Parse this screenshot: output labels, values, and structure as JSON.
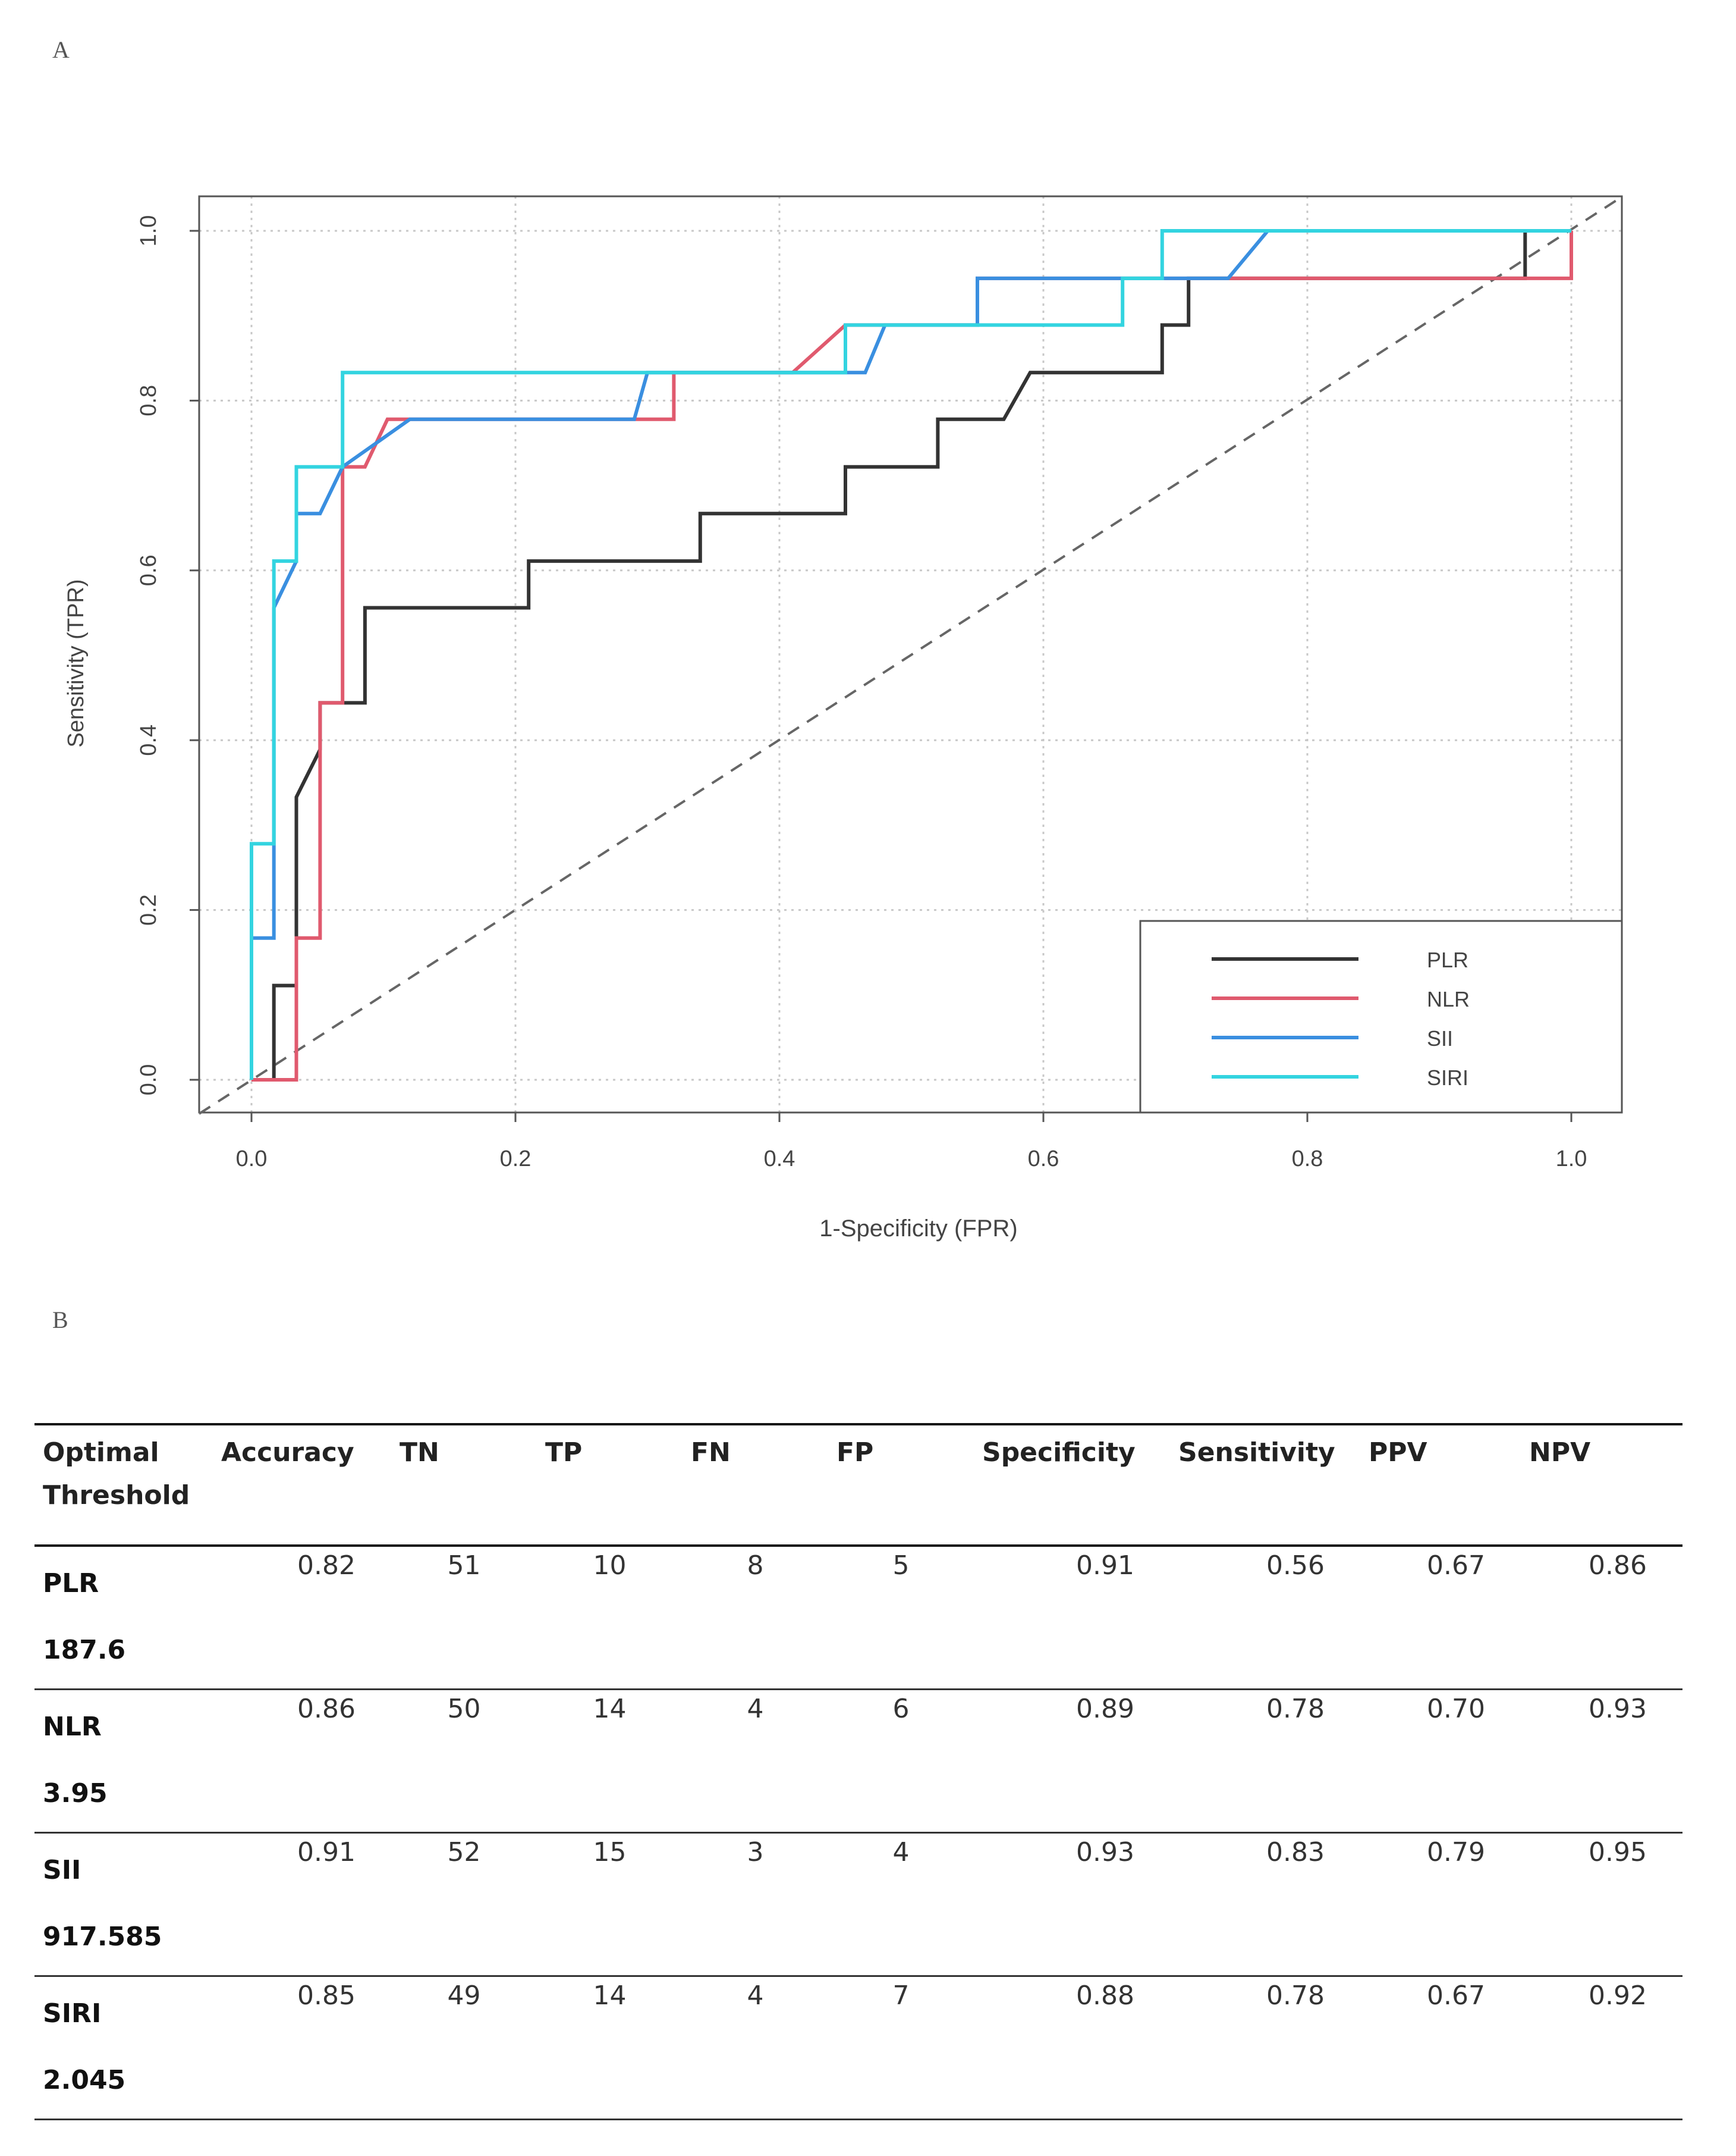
{
  "chart_data": {
    "type": "line",
    "panel_label": "A",
    "title": "",
    "xlabel": "1-Specificity (FPR)",
    "ylabel": "Sensitivity (TPR)",
    "xlim": [
      0,
      1
    ],
    "ylim": [
      0,
      1
    ],
    "xticks": [
      "0.0",
      "0.2",
      "0.4",
      "0.6",
      "0.8",
      "1.0"
    ],
    "yticks": [
      "0.0",
      "0.2",
      "0.4",
      "0.6",
      "0.8",
      "1.0"
    ],
    "grid": true,
    "legend_position": "bottom-right",
    "reference_line": "diagonal",
    "series": [
      {
        "name": "PLR",
        "color": "#333333",
        "x": [
          0,
          0.017,
          0.017,
          0.034,
          0.034,
          0.052,
          0.052,
          0.086,
          0.086,
          0.21,
          0.21,
          0.34,
          0.34,
          0.45,
          0.45,
          0.52,
          0.52,
          0.57,
          0.59,
          0.69,
          0.69,
          0.71,
          0.71,
          0.965,
          0.965,
          1.0
        ],
        "y": [
          0,
          0,
          0.111,
          0.111,
          0.333,
          0.389,
          0.444,
          0.444,
          0.556,
          0.556,
          0.611,
          0.611,
          0.667,
          0.667,
          0.722,
          0.722,
          0.778,
          0.778,
          0.833,
          0.833,
          0.889,
          0.889,
          0.944,
          0.944,
          1.0,
          1.0
        ]
      },
      {
        "name": "NLR",
        "color": "#e05a6e",
        "x": [
          0,
          0.034,
          0.034,
          0.052,
          0.052,
          0.069,
          0.069,
          0.086,
          0.103,
          0.32,
          0.32,
          0.41,
          0.45,
          0.55,
          0.55,
          0.66,
          0.66,
          0.74,
          1.0,
          1.0
        ],
        "y": [
          0,
          0,
          0.167,
          0.167,
          0.444,
          0.444,
          0.722,
          0.722,
          0.778,
          0.778,
          0.833,
          0.833,
          0.889,
          0.889,
          0.944,
          0.944,
          0.944,
          0.944,
          0.944,
          1.0
        ]
      },
      {
        "name": "SII",
        "color": "#3a8fe0",
        "x": [
          0,
          0,
          0.017,
          0.017,
          0.034,
          0.034,
          0.052,
          0.069,
          0.12,
          0.29,
          0.3,
          0.45,
          0.465,
          0.48,
          0.55,
          0.55,
          0.74,
          0.77,
          1.0
        ],
        "y": [
          0,
          0.167,
          0.167,
          0.556,
          0.611,
          0.667,
          0.667,
          0.722,
          0.778,
          0.778,
          0.833,
          0.833,
          0.833,
          0.889,
          0.889,
          0.944,
          0.944,
          1.0,
          1.0
        ]
      },
      {
        "name": "SIRI",
        "color": "#33d4e0",
        "x": [
          0,
          0,
          0.017,
          0.017,
          0.034,
          0.034,
          0.069,
          0.069,
          0.45,
          0.45,
          0.66,
          0.66,
          0.69,
          0.69,
          1.0
        ],
        "y": [
          0,
          0.278,
          0.278,
          0.611,
          0.611,
          0.722,
          0.722,
          0.833,
          0.833,
          0.889,
          0.889,
          0.944,
          0.944,
          1.0,
          1.0
        ]
      }
    ]
  },
  "table": {
    "panel_label": "B",
    "headers": [
      "Optimal Threshold",
      "Accuracy",
      "TN",
      "TP",
      "FN",
      "FP",
      "Specificity",
      "Sensitivity",
      "PPV",
      "NPV"
    ],
    "rows": [
      {
        "name": "PLR",
        "threshold": "187.6",
        "cells": [
          "0.82",
          "51",
          "10",
          "8",
          "5",
          "0.91",
          "0.56",
          "0.67",
          "0.86"
        ]
      },
      {
        "name": "NLR",
        "threshold": "3.95",
        "cells": [
          "0.86",
          "50",
          "14",
          "4",
          "6",
          "0.89",
          "0.78",
          "0.70",
          "0.93"
        ]
      },
      {
        "name": "SII",
        "threshold": "917.585",
        "cells": [
          "0.91",
          "52",
          "15",
          "3",
          "4",
          "0.93",
          "0.83",
          "0.79",
          "0.95"
        ]
      },
      {
        "name": "SIRI",
        "threshold": "2.045",
        "cells": [
          "0.85",
          "49",
          "14",
          "4",
          "7",
          "0.88",
          "0.78",
          "0.67",
          "0.92"
        ]
      }
    ]
  }
}
